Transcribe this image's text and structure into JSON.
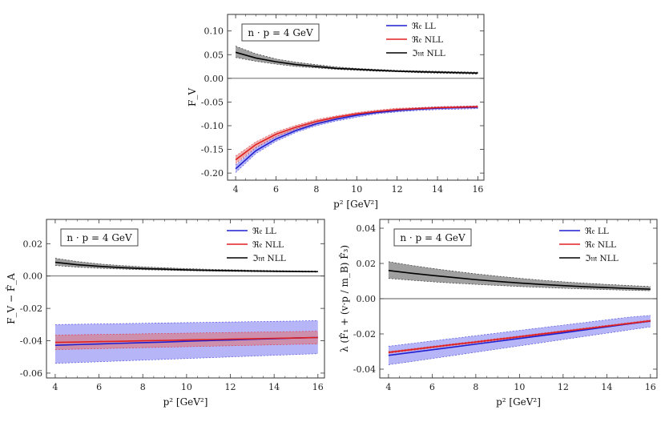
{
  "colors": {
    "re_ll": "#1f1fd0",
    "re_ll_band": "#7878f0",
    "re_nll": "#e02020",
    "re_nll_band": "#e07070",
    "im_nll": "#000000",
    "im_nll_band": "#808080"
  },
  "legend": {
    "re_ll": "ℜ𝔢 LL",
    "re_nll": "ℜ𝔢 NLL",
    "im_nll": "ℑ𝔪 NLL"
  },
  "chart_data": [
    {
      "type": "line",
      "annotation": "n · p = 4 GeV",
      "ylabel": "F_V",
      "xlabel": "p² [GeV²]",
      "xlim": [
        3.6,
        16.3
      ],
      "ylim": [
        -0.215,
        0.135
      ],
      "xticks": [
        "4",
        "6",
        "8",
        "10",
        "12",
        "14",
        "16"
      ],
      "yticks": [
        "0.10",
        "0.05",
        "0.00",
        "-0.05",
        "-0.10",
        "-0.15",
        "-0.20"
      ],
      "ytick_values": [
        0.1,
        0.05,
        0.0,
        -0.05,
        -0.1,
        -0.15,
        -0.2
      ],
      "x": [
        4,
        5,
        6,
        7,
        8,
        9,
        10,
        11,
        12,
        13,
        14,
        15,
        16
      ],
      "series": [
        {
          "name": "Re LL",
          "values": [
            -0.191,
            -0.153,
            -0.128,
            -0.11,
            -0.096,
            -0.086,
            -0.078,
            -0.072,
            -0.068,
            -0.065,
            -0.063,
            -0.062,
            -0.061
          ],
          "band_lower": [
            -0.199,
            -0.159,
            -0.133,
            -0.114,
            -0.1,
            -0.09,
            -0.082,
            -0.075,
            -0.071,
            -0.068,
            -0.066,
            -0.065,
            -0.064
          ],
          "band_upper": [
            -0.183,
            -0.147,
            -0.123,
            -0.106,
            -0.092,
            -0.082,
            -0.074,
            -0.069,
            -0.065,
            -0.062,
            -0.06,
            -0.059,
            -0.058
          ]
        },
        {
          "name": "Re NLL",
          "values": [
            -0.172,
            -0.14,
            -0.118,
            -0.103,
            -0.091,
            -0.082,
            -0.075,
            -0.07,
            -0.066,
            -0.064,
            -0.062,
            -0.061,
            -0.06
          ],
          "band_lower": [
            -0.18,
            -0.146,
            -0.123,
            -0.107,
            -0.095,
            -0.085,
            -0.078,
            -0.073,
            -0.069,
            -0.066,
            -0.064,
            -0.063,
            -0.062
          ],
          "band_upper": [
            -0.164,
            -0.134,
            -0.113,
            -0.099,
            -0.087,
            -0.079,
            -0.072,
            -0.067,
            -0.063,
            -0.062,
            -0.06,
            -0.059,
            -0.058
          ]
        },
        {
          "name": "Im NLL",
          "values": [
            0.055,
            0.043,
            0.035,
            0.029,
            0.025,
            0.021,
            0.019,
            0.017,
            0.015,
            0.014,
            0.013,
            0.012,
            0.011
          ],
          "band_lower": [
            0.044,
            0.036,
            0.03,
            0.025,
            0.022,
            0.019,
            0.017,
            0.015,
            0.014,
            0.012,
            0.011,
            0.01,
            0.009
          ],
          "band_upper": [
            0.068,
            0.052,
            0.041,
            0.034,
            0.029,
            0.024,
            0.021,
            0.019,
            0.017,
            0.016,
            0.015,
            0.014,
            0.013
          ]
        }
      ]
    },
    {
      "type": "line",
      "annotation": "n · p = 4 GeV",
      "ylabel": "F_V − F̂_A",
      "xlabel": "p² [GeV²]",
      "xlim": [
        3.6,
        16.3
      ],
      "ylim": [
        -0.063,
        0.035
      ],
      "xticks": [
        "4",
        "6",
        "8",
        "10",
        "12",
        "14",
        "16"
      ],
      "yticks": [
        "0.02",
        "0.00",
        "-0.02",
        "-0.04",
        "-0.06"
      ],
      "ytick_values": [
        0.02,
        0.0,
        -0.02,
        -0.04,
        -0.06
      ],
      "x": [
        4,
        5,
        6,
        7,
        8,
        9,
        10,
        11,
        12,
        13,
        14,
        15,
        16
      ],
      "series": [
        {
          "name": "Re LL",
          "values": [
            -0.0428,
            -0.0424,
            -0.042,
            -0.0416,
            -0.0412,
            -0.0408,
            -0.0403,
            -0.0399,
            -0.0395,
            -0.0391,
            -0.0387,
            -0.0383,
            -0.038
          ],
          "band_lower": [
            -0.054,
            -0.0535,
            -0.053,
            -0.0525,
            -0.052,
            -0.0515,
            -0.051,
            -0.0505,
            -0.05,
            -0.0495,
            -0.049,
            -0.0485,
            -0.048
          ],
          "band_upper": [
            -0.03,
            -0.0298,
            -0.0296,
            -0.0294,
            -0.0292,
            -0.029,
            -0.0288,
            -0.0286,
            -0.0284,
            -0.0282,
            -0.028,
            -0.0278,
            -0.0275
          ]
        },
        {
          "name": "Re NLL",
          "values": [
            -0.041,
            -0.0408,
            -0.0405,
            -0.0403,
            -0.04,
            -0.0398,
            -0.0395,
            -0.0393,
            -0.039,
            -0.0388,
            -0.0385,
            -0.0383,
            -0.038
          ],
          "band_lower": [
            -0.0455,
            -0.0452,
            -0.0449,
            -0.0446,
            -0.0443,
            -0.044,
            -0.0437,
            -0.0434,
            -0.0431,
            -0.0428,
            -0.0425,
            -0.0422,
            -0.042
          ],
          "band_upper": [
            -0.0365,
            -0.0363,
            -0.0361,
            -0.0359,
            -0.0357,
            -0.0355,
            -0.0353,
            -0.0351,
            -0.0349,
            -0.0347,
            -0.0345,
            -0.0343,
            -0.034
          ]
        },
        {
          "name": "Im NLL",
          "values": [
            0.0085,
            0.007,
            0.006,
            0.0052,
            0.0046,
            0.0042,
            0.0038,
            0.0035,
            0.0033,
            0.0031,
            0.0029,
            0.0028,
            0.0027
          ],
          "band_lower": [
            0.0065,
            0.0055,
            0.0048,
            0.0043,
            0.0039,
            0.0036,
            0.0033,
            0.0031,
            0.0029,
            0.0027,
            0.0026,
            0.0025,
            0.0024
          ],
          "band_upper": [
            0.011,
            0.009,
            0.0075,
            0.0065,
            0.0057,
            0.0051,
            0.0046,
            0.0042,
            0.0039,
            0.0036,
            0.0034,
            0.0032,
            0.0031
          ]
        }
      ]
    },
    {
      "type": "line",
      "annotation": "n · p = 4 GeV",
      "ylabel": "λ (F̂₁ + (v·p / m_B) F̂₃)",
      "xlabel": "p² [GeV²]",
      "xlim": [
        3.6,
        16.3
      ],
      "ylim": [
        -0.045,
        0.045
      ],
      "xticks": [
        "4",
        "6",
        "8",
        "10",
        "12",
        "14",
        "16"
      ],
      "yticks": [
        "0.04",
        "0.02",
        "0.00",
        "-0.02",
        "-0.04"
      ],
      "ytick_values": [
        0.04,
        0.02,
        0.0,
        -0.02,
        -0.04
      ],
      "x": [
        4,
        5,
        6,
        7,
        8,
        9,
        10,
        11,
        12,
        13,
        14,
        15,
        16
      ],
      "series": [
        {
          "name": "Re LL",
          "values": [
            -0.0322,
            -0.0306,
            -0.029,
            -0.0274,
            -0.0258,
            -0.0242,
            -0.0226,
            -0.021,
            -0.0194,
            -0.0177,
            -0.016,
            -0.0143,
            -0.0127
          ],
          "band_lower": [
            -0.0375,
            -0.0358,
            -0.034,
            -0.0322,
            -0.0304,
            -0.0286,
            -0.0268,
            -0.025,
            -0.0232,
            -0.0214,
            -0.0196,
            -0.0178,
            -0.016
          ],
          "band_upper": [
            -0.027,
            -0.0255,
            -0.024,
            -0.0225,
            -0.021,
            -0.0195,
            -0.018,
            -0.0165,
            -0.015,
            -0.0135,
            -0.012,
            -0.0105,
            -0.0095
          ]
        },
        {
          "name": "Re NLL",
          "values": [
            -0.0305,
            -0.029,
            -0.0275,
            -0.026,
            -0.0246,
            -0.0231,
            -0.0216,
            -0.0201,
            -0.0186,
            -0.0171,
            -0.0156,
            -0.0141,
            -0.0126
          ],
          "band_lower": [
            -0.031,
            -0.0295,
            -0.028,
            -0.0265,
            -0.0251,
            -0.0236,
            -0.0221,
            -0.0206,
            -0.0191,
            -0.0176,
            -0.0161,
            -0.0146,
            -0.0131
          ],
          "band_upper": [
            -0.03,
            -0.0285,
            -0.027,
            -0.0255,
            -0.0241,
            -0.0226,
            -0.0211,
            -0.0196,
            -0.0181,
            -0.0166,
            -0.0151,
            -0.0136,
            -0.0121
          ]
        },
        {
          "name": "Im NLL",
          "values": [
            0.016,
            0.0145,
            0.0132,
            0.012,
            0.0108,
            0.0098,
            0.0089,
            0.0081,
            0.0074,
            0.0068,
            0.0063,
            0.0058,
            0.0054
          ],
          "band_lower": [
            0.0115,
            0.0105,
            0.0096,
            0.0088,
            0.0081,
            0.0075,
            0.0069,
            0.0064,
            0.0059,
            0.0055,
            0.0051,
            0.0048,
            0.0045
          ],
          "band_upper": [
            0.021,
            0.019,
            0.0172,
            0.0156,
            0.0141,
            0.0128,
            0.0116,
            0.0105,
            0.0096,
            0.0088,
            0.0081,
            0.0075,
            0.0069
          ]
        }
      ]
    }
  ]
}
